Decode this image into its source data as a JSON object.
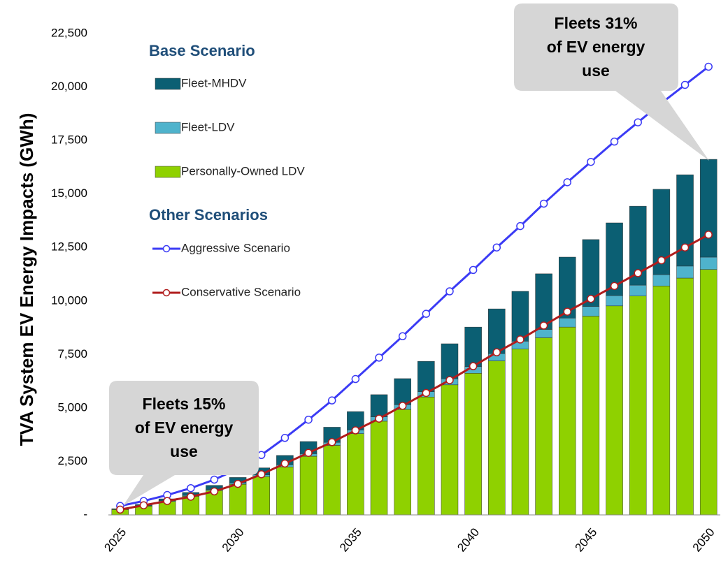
{
  "chart_data": {
    "type": "bar",
    "y_label": "TVA System EV Energy Impacts (GWh)",
    "categories": [
      "2025",
      null,
      null,
      null,
      null,
      "2030",
      null,
      null,
      null,
      null,
      "2035",
      null,
      null,
      null,
      null,
      "2040",
      null,
      null,
      null,
      null,
      "2045",
      null,
      null,
      null,
      null,
      "2050"
    ],
    "legend_headings": [
      "Base Scenario",
      "Other Scenarios"
    ],
    "series": [
      {
        "name": "Fleet-MHDV",
        "type": "bar",
        "color": "#0b5f73",
        "values": [
          30,
          60,
          90,
          140,
          190,
          260,
          330,
          440,
          570,
          710,
          860,
          1040,
          1220,
          1420,
          1640,
          1850,
          2090,
          2330,
          2600,
          2850,
          3130,
          3400,
          3690,
          3990,
          4270,
          4570
        ]
      },
      {
        "name": "Fleet-LDV",
        "type": "bar",
        "color": "#4fb3cc",
        "values": [
          10,
          20,
          30,
          40,
          50,
          60,
          80,
          100,
          120,
          140,
          170,
          200,
          220,
          250,
          280,
          310,
          340,
          370,
          390,
          420,
          450,
          480,
          510,
          530,
          560,
          580
        ]
      },
      {
        "name": "Personally-Owned LDV",
        "type": "bar",
        "color": "#8fd100",
        "values": [
          250,
          410,
          630,
          870,
          1140,
          1430,
          1790,
          2240,
          2740,
          3250,
          3800,
          4380,
          4930,
          5510,
          6080,
          6620,
          7200,
          7750,
          8280,
          8780,
          9290,
          9770,
          10230,
          10700,
          11070,
          11470
        ]
      },
      {
        "name": "Aggressive Scenario",
        "type": "line",
        "color": "#3b3bf5",
        "values": [
          420,
          650,
          930,
          1250,
          1650,
          2150,
          2800,
          3600,
          4450,
          5350,
          6350,
          7350,
          8350,
          9400,
          10450,
          11450,
          12500,
          13500,
          14550,
          15550,
          16500,
          17450,
          18350,
          19250,
          20100,
          20950
        ]
      },
      {
        "name": "Conservative Scenario",
        "type": "line",
        "color": "#b01c1c",
        "values": [
          250,
          450,
          650,
          850,
          1100,
          1450,
          1900,
          2400,
          2900,
          3400,
          3950,
          4500,
          5100,
          5700,
          6300,
          6950,
          7600,
          8200,
          8850,
          9500,
          10100,
          10700,
          11300,
          11900,
          12500,
          13100
        ]
      }
    ],
    "ylim": [
      0,
      22500
    ],
    "yticks": [
      {
        "value": 0,
        "label": "-"
      },
      {
        "value": 2500,
        "label": "2,500"
      },
      {
        "value": 5000,
        "label": "5,000"
      },
      {
        "value": 7500,
        "label": "7,500"
      },
      {
        "value": 10000,
        "label": "10,000"
      },
      {
        "value": 12500,
        "label": "12,500"
      },
      {
        "value": 15000,
        "label": "15,000"
      },
      {
        "value": 17500,
        "label": "17,500"
      },
      {
        "value": 20000,
        "label": "20,000"
      },
      {
        "value": 22500,
        "label": "22,500"
      }
    ],
    "grid": false,
    "annotations": [
      {
        "lines": [
          "Fleets 15%",
          "of EV energy",
          "use"
        ]
      },
      {
        "lines": [
          "Fleets 31%",
          "of EV energy",
          "use"
        ]
      }
    ]
  }
}
